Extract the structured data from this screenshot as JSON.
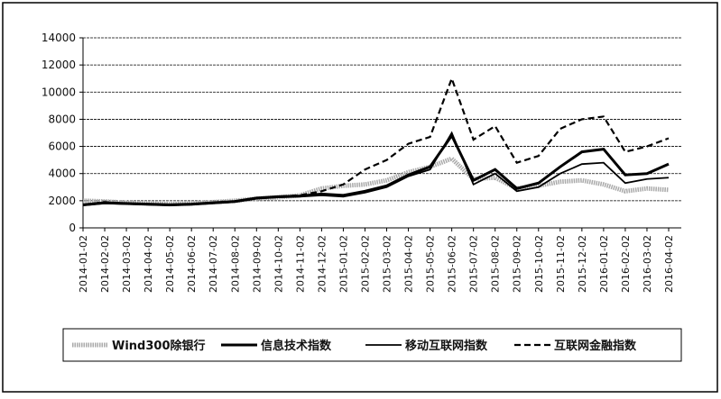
{
  "chart_data": {
    "type": "line",
    "categories": [
      "2014-01-02",
      "2014-02-02",
      "2014-03-02",
      "2014-04-02",
      "2014-05-02",
      "2014-06-02",
      "2014-07-02",
      "2014-08-02",
      "2014-09-02",
      "2014-10-02",
      "2014-11-02",
      "2014-12-02",
      "2015-01-02",
      "2015-02-02",
      "2015-03-02",
      "2015-04-02",
      "2015-05-02",
      "2015-06-02",
      "2015-07-02",
      "2015-08-02",
      "2015-09-02",
      "2015-10-02",
      "2015-11-02",
      "2015-12-02",
      "2016-01-02",
      "2016-02-02",
      "2016-03-02",
      "2016-04-02"
    ],
    "series": [
      {
        "name": "Wind300除银行",
        "color": "#aaaaaa",
        "style": "dotted",
        "values": [
          2000,
          1950,
          1850,
          1800,
          1750,
          1800,
          1900,
          2000,
          2150,
          2250,
          2400,
          2900,
          3100,
          3200,
          3500,
          4100,
          4500,
          5100,
          3600,
          3700,
          2900,
          3100,
          3400,
          3500,
          3200,
          2700,
          2900,
          2800
        ]
      },
      {
        "name": "信息技术指数",
        "color": "#000000",
        "style": "thick",
        "values": [
          1700,
          1850,
          1800,
          1750,
          1700,
          1750,
          1850,
          1950,
          2200,
          2300,
          2350,
          2500,
          2400,
          2700,
          3100,
          3900,
          4500,
          6800,
          3500,
          4300,
          2900,
          3300,
          4500,
          5600,
          5800,
          3900,
          4000,
          4700
        ]
      },
      {
        "name": "移动互联网指数",
        "color": "#000000",
        "style": "solid",
        "values": [
          1650,
          1800,
          1750,
          1700,
          1650,
          1700,
          1800,
          1900,
          2150,
          2250,
          2300,
          2400,
          2300,
          2600,
          3000,
          3800,
          4300,
          7000,
          3200,
          4000,
          2700,
          3000,
          4000,
          4700,
          4800,
          3300,
          3600,
          3700
        ]
      },
      {
        "name": "互联网金融指数",
        "color": "#000000",
        "style": "dashed",
        "values": [
          1700,
          1900,
          1800,
          1750,
          1700,
          1750,
          1850,
          1950,
          2200,
          2300,
          2400,
          2700,
          3200,
          4300,
          5000,
          6200,
          6700,
          11000,
          6500,
          7500,
          4800,
          5300,
          7300,
          8000,
          8200,
          5600,
          6000,
          6600
        ]
      }
    ],
    "ylim": [
      0,
      14000
    ],
    "yticks": [
      0,
      2000,
      4000,
      6000,
      8000,
      10000,
      12000,
      14000
    ],
    "grid": true
  }
}
